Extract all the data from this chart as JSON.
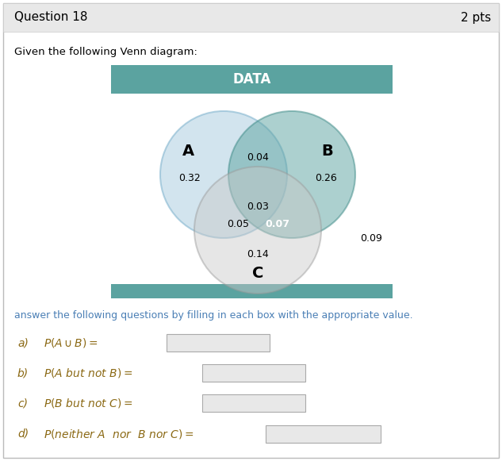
{
  "title": "Question 18",
  "pts": "2 pts",
  "header_text": "DATA",
  "header_color": "#5ba3a0",
  "question_text": "Given the following Venn diagram:",
  "circle_A_color": "#aecfe0",
  "circle_B_color": "#5ba3a0",
  "circle_C_color": "#c8c8c8",
  "circle_A_edge": "#7ab0cc",
  "circle_B_edge": "#3d8a87",
  "circle_C_edge": "#999999",
  "label_A": "A",
  "label_B": "B",
  "label_C": "C",
  "val_A_only": "0.32",
  "val_B_only": "0.26",
  "val_C_only": "0.14",
  "val_AB": "0.04",
  "val_AC": "0.05",
  "val_BC": "0.07",
  "val_ABC": "0.03",
  "val_outside": "0.09",
  "answer_instruction": "answer the following questions by filling in each box with the appropriate value.",
  "answer_color": "#4a7fb5",
  "answer_label_color": "#8b6914",
  "box_color": "#e8e8e8",
  "box_edge_color": "#aaaaaa",
  "top_bar_color": "#e8e8e8",
  "top_bar_edge": "#cccccc",
  "border_color": "#bbbbbb"
}
